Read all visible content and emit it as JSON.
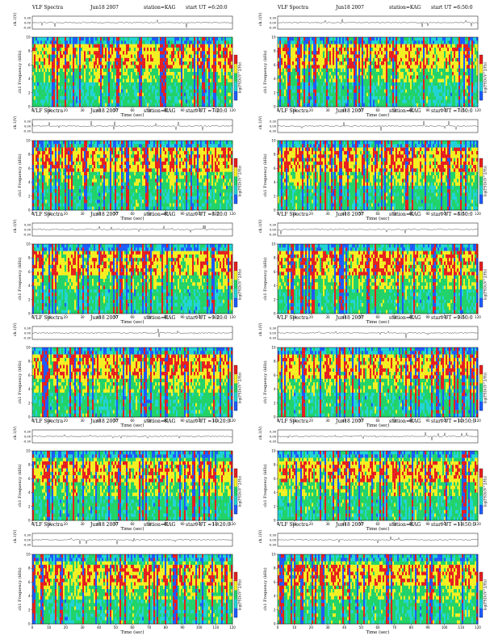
{
  "chart_data": [
    {
      "type": "heatmap",
      "title": "VLF Spectra",
      "date": "Jun18 2007",
      "station": "station=KAG",
      "start": "start UT =6:20:0",
      "top_ylabel": "ch.1(V)",
      "top_yticks": [
        "0.30",
        "0.00",
        "-0.30"
      ],
      "ylabel": "ch1 Frequency (kHz)",
      "yticks": [
        "0",
        "2",
        "4",
        "6",
        "8",
        "10"
      ],
      "xlabel": "Time (sec)",
      "xticks": [
        "0",
        "10",
        "20",
        "30",
        "40",
        "50",
        "60",
        "70",
        "80",
        "90",
        "100",
        "110",
        "120"
      ],
      "colorbar_label": "log(PSD)(V^2/Hz)",
      "xlim": [
        0,
        120
      ],
      "ylim": [
        0,
        10
      ]
    },
    {
      "type": "heatmap",
      "title": "VLF Spectra",
      "date": "Jun18 2007",
      "station": "station=KAG",
      "start": "start UT =6:50:0",
      "top_ylabel": "ch.1(V)",
      "top_yticks": [
        "0.30",
        "0.00",
        "-0.30"
      ],
      "ylabel": "ch1 Frequency (kHz)",
      "yticks": [
        "0",
        "2",
        "4",
        "6",
        "8",
        "10"
      ],
      "xlabel": "Time (sec)",
      "xticks": [
        "0",
        "10",
        "20",
        "30",
        "40",
        "50",
        "60",
        "70",
        "80",
        "90",
        "100",
        "110",
        "120"
      ],
      "colorbar_label": "log(PSD)(V^2/Hz)",
      "xlim": [
        0,
        120
      ],
      "ylim": [
        0,
        10
      ]
    },
    {
      "type": "heatmap",
      "title": "VLF Spectra",
      "date": "Jun18 2007",
      "station": "station=KAG",
      "start": "start UT =7:20:0",
      "top_ylabel": "ch.1(V)",
      "top_yticks": [
        "0.30",
        "0.00",
        "-0.30"
      ],
      "ylabel": "ch1 Frequency (kHz)",
      "yticks": [
        "0",
        "2",
        "4",
        "6",
        "8",
        "10"
      ],
      "xlabel": "Time (sec)",
      "xticks": [
        "0",
        "10",
        "20",
        "30",
        "40",
        "50",
        "60",
        "70",
        "80",
        "90",
        "100",
        "110",
        "120"
      ],
      "colorbar_label": "log(PSD)(V^2/Hz)",
      "xlim": [
        0,
        120
      ],
      "ylim": [
        0,
        10
      ]
    },
    {
      "type": "heatmap",
      "title": "VLF Spectra",
      "date": "Jun18 2007",
      "station": "station=KAG",
      "start": "start UT =7:50:0",
      "top_ylabel": "ch.1(V)",
      "top_yticks": [
        "0.30",
        "0.00",
        "-0.30"
      ],
      "ylabel": "ch1 Frequency (kHz)",
      "yticks": [
        "0",
        "2",
        "4",
        "6",
        "8",
        "10"
      ],
      "xlabel": "Time (sec)",
      "xticks": [
        "0",
        "10",
        "20",
        "30",
        "40",
        "50",
        "60",
        "70",
        "80",
        "90",
        "100",
        "110",
        "120"
      ],
      "colorbar_label": "log(PSD)(V^2/Hz)",
      "xlim": [
        0,
        120
      ],
      "ylim": [
        0,
        10
      ]
    },
    {
      "type": "heatmap",
      "title": "VLF Spectra",
      "date": "Jun18 2007",
      "station": "station=KAG",
      "start": "start UT =8:20:0",
      "top_ylabel": "ch.1(V)",
      "top_yticks": [
        "0.30",
        "0.00",
        "-0.30"
      ],
      "ylabel": "ch1 Frequency (kHz)",
      "yticks": [
        "0",
        "2",
        "4",
        "6",
        "8",
        "10"
      ],
      "xlabel": "Time (sec)",
      "xticks": [
        "0",
        "10",
        "20",
        "30",
        "40",
        "50",
        "60",
        "70",
        "80",
        "90",
        "100",
        "110",
        "120"
      ],
      "colorbar_label": "log(PSD)(V^2/Hz)",
      "xlim": [
        0,
        120
      ],
      "ylim": [
        0,
        10
      ]
    },
    {
      "type": "heatmap",
      "title": "VLF Spectra",
      "date": "Jun18 2007",
      "station": "station=KAG",
      "start": "start UT =8:50:0",
      "top_ylabel": "ch.1(V)",
      "top_yticks": [
        "0.30",
        "0.00",
        "-0.30"
      ],
      "ylabel": "ch1 Frequency (kHz)",
      "yticks": [
        "0",
        "2",
        "4",
        "6",
        "8",
        "10"
      ],
      "xlabel": "Time (sec)",
      "xticks": [
        "0",
        "10",
        "20",
        "30",
        "40",
        "50",
        "60",
        "70",
        "80",
        "90",
        "100",
        "110",
        "120"
      ],
      "colorbar_label": "log(PSD)(V^2/Hz)",
      "xlim": [
        0,
        120
      ],
      "ylim": [
        0,
        10
      ]
    },
    {
      "type": "heatmap",
      "title": "VLF Spectra",
      "date": "Jun18 2007",
      "station": "station=KAG",
      "start": "start UT =9:20:0",
      "top_ylabel": "ch.1(V)",
      "top_yticks": [
        "0.30",
        "0.00",
        "-0.30"
      ],
      "ylabel": "ch1 Frequency (kHz)",
      "yticks": [
        "0",
        "2",
        "4",
        "6",
        "8",
        "10"
      ],
      "xlabel": "Time (sec)",
      "xticks": [
        "0",
        "10",
        "20",
        "30",
        "40",
        "50",
        "60",
        "70",
        "80",
        "90",
        "100",
        "110",
        "120"
      ],
      "colorbar_label": "log(PSD)(V^2/Hz)",
      "xlim": [
        0,
        120
      ],
      "ylim": [
        0,
        10
      ]
    },
    {
      "type": "heatmap",
      "title": "VLF Spectra",
      "date": "Jun18 2007",
      "station": "station=KAG",
      "start": "start UT =9:50:0",
      "top_ylabel": "ch.1(V)",
      "top_yticks": [
        "0.30",
        "0.00",
        "-0.30"
      ],
      "ylabel": "ch1 Frequency (kHz)",
      "yticks": [
        "0",
        "2",
        "4",
        "6",
        "8",
        "10"
      ],
      "xlabel": "Time (sec)",
      "xticks": [
        "0",
        "10",
        "20",
        "30",
        "40",
        "50",
        "60",
        "70",
        "80",
        "90",
        "100",
        "110",
        "120"
      ],
      "colorbar_label": "log(PSD)(V^2/Hz)",
      "xlim": [
        0,
        120
      ],
      "ylim": [
        0,
        10
      ]
    },
    {
      "type": "heatmap",
      "title": "VLF Spectra",
      "date": "Jun18 2007",
      "station": "station=KAG",
      "start": "start UT =10:20:0",
      "top_ylabel": "ch.1(V)",
      "top_yticks": [
        "0.30",
        "0.00",
        "-0.30"
      ],
      "ylabel": "ch1 Frequency (kHz)",
      "yticks": [
        "0",
        "2",
        "4",
        "6",
        "8",
        "10"
      ],
      "xlabel": "Time (sec)",
      "xticks": [
        "0",
        "10",
        "20",
        "30",
        "40",
        "50",
        "60",
        "70",
        "80",
        "90",
        "100",
        "110",
        "120"
      ],
      "colorbar_label": "log(PSD)(V^2/Hz)",
      "xlim": [
        0,
        120
      ],
      "ylim": [
        0,
        10
      ]
    },
    {
      "type": "heatmap",
      "title": "VLF Spectra",
      "date": "Jun18 2007",
      "station": "station=KAG",
      "start": "start UT =10:50:0",
      "top_ylabel": "ch.1(V)",
      "top_yticks": [
        "0.30",
        "0.00",
        "-0.30"
      ],
      "ylabel": "ch1 Frequency (kHz)",
      "yticks": [
        "0",
        "2",
        "4",
        "6",
        "8",
        "10"
      ],
      "xlabel": "Time (sec)",
      "xticks": [
        "0",
        "10",
        "20",
        "30",
        "40",
        "50",
        "60",
        "70",
        "80",
        "90",
        "100",
        "110",
        "120"
      ],
      "colorbar_label": "log(PSD)(V^2/Hz)",
      "xlim": [
        0,
        120
      ],
      "ylim": [
        0,
        10
      ]
    },
    {
      "type": "heatmap",
      "title": "VLF Spectra",
      "date": "Jun18 2007",
      "station": "station=KAG",
      "start": "start UT =11:20:0",
      "top_ylabel": "ch.1(V)",
      "top_yticks": [
        "0.30",
        "0.00",
        "-0.30"
      ],
      "ylabel": "ch1 Frequency (kHz)",
      "yticks": [
        "0",
        "2",
        "4",
        "6",
        "8",
        "10"
      ],
      "xlabel": "Time (sec)",
      "xticks": [
        "0",
        "10",
        "20",
        "30",
        "40",
        "50",
        "60",
        "70",
        "80",
        "90",
        "100",
        "110",
        "120"
      ],
      "colorbar_label": "log(PSD)(V^2/Hz)",
      "xlim": [
        0,
        120
      ],
      "ylim": [
        0,
        10
      ]
    },
    {
      "type": "heatmap",
      "title": "VLF Spectra",
      "date": "Jun18 2007",
      "station": "station=KAG",
      "start": "start UT =11:50:0",
      "top_ylabel": "ch.1(V)",
      "top_yticks": [
        "0.30",
        "0.00",
        "-0.30"
      ],
      "ylabel": "ch1 Frequency (kHz)",
      "yticks": [
        "0",
        "2",
        "4",
        "6",
        "8",
        "10"
      ],
      "xlabel": "Time (sec)",
      "xticks": [
        "0",
        "10",
        "20",
        "30",
        "40",
        "50",
        "60",
        "70",
        "80",
        "90",
        "100",
        "110",
        "120"
      ],
      "colorbar_label": "log(PSD)(V^2/Hz)",
      "xlim": [
        0,
        120
      ],
      "ylim": [
        0,
        10
      ]
    }
  ],
  "colors": {
    "blue": "#1e5cff",
    "cyan": "#22d3d6",
    "green": "#22d36a",
    "yellow": "#f4ef22",
    "red": "#e62020",
    "dark": "#222222"
  }
}
